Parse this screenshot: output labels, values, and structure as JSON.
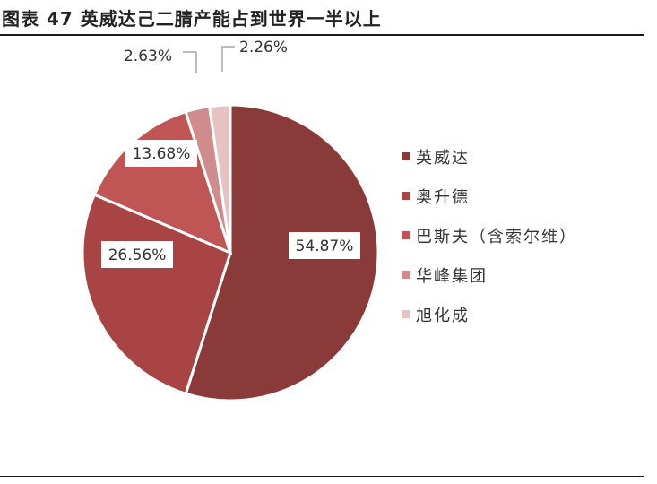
{
  "title": "图表 47 英威达己二腈产能占到世界一半以上",
  "chart_data": {
    "type": "pie",
    "title": "",
    "start_angle_deg": 0,
    "direction": "clockwise",
    "slices": [
      {
        "name": "英威达",
        "value": 54.87,
        "label": "54.87%",
        "color": "#8B3A3A"
      },
      {
        "name": "奥升德",
        "value": 26.56,
        "label": "26.56%",
        "color": "#A94444"
      },
      {
        "name": "巴斯夫（含索尔维）",
        "value": 13.68,
        "label": "13.68%",
        "color": "#C05555"
      },
      {
        "name": "华峰集团",
        "value": 2.63,
        "label": "2.63%",
        "color": "#D08C8C"
      },
      {
        "name": "旭化成",
        "value": 2.26,
        "label": "2.26%",
        "color": "#E6C2C2"
      }
    ],
    "legend_position": "right"
  }
}
